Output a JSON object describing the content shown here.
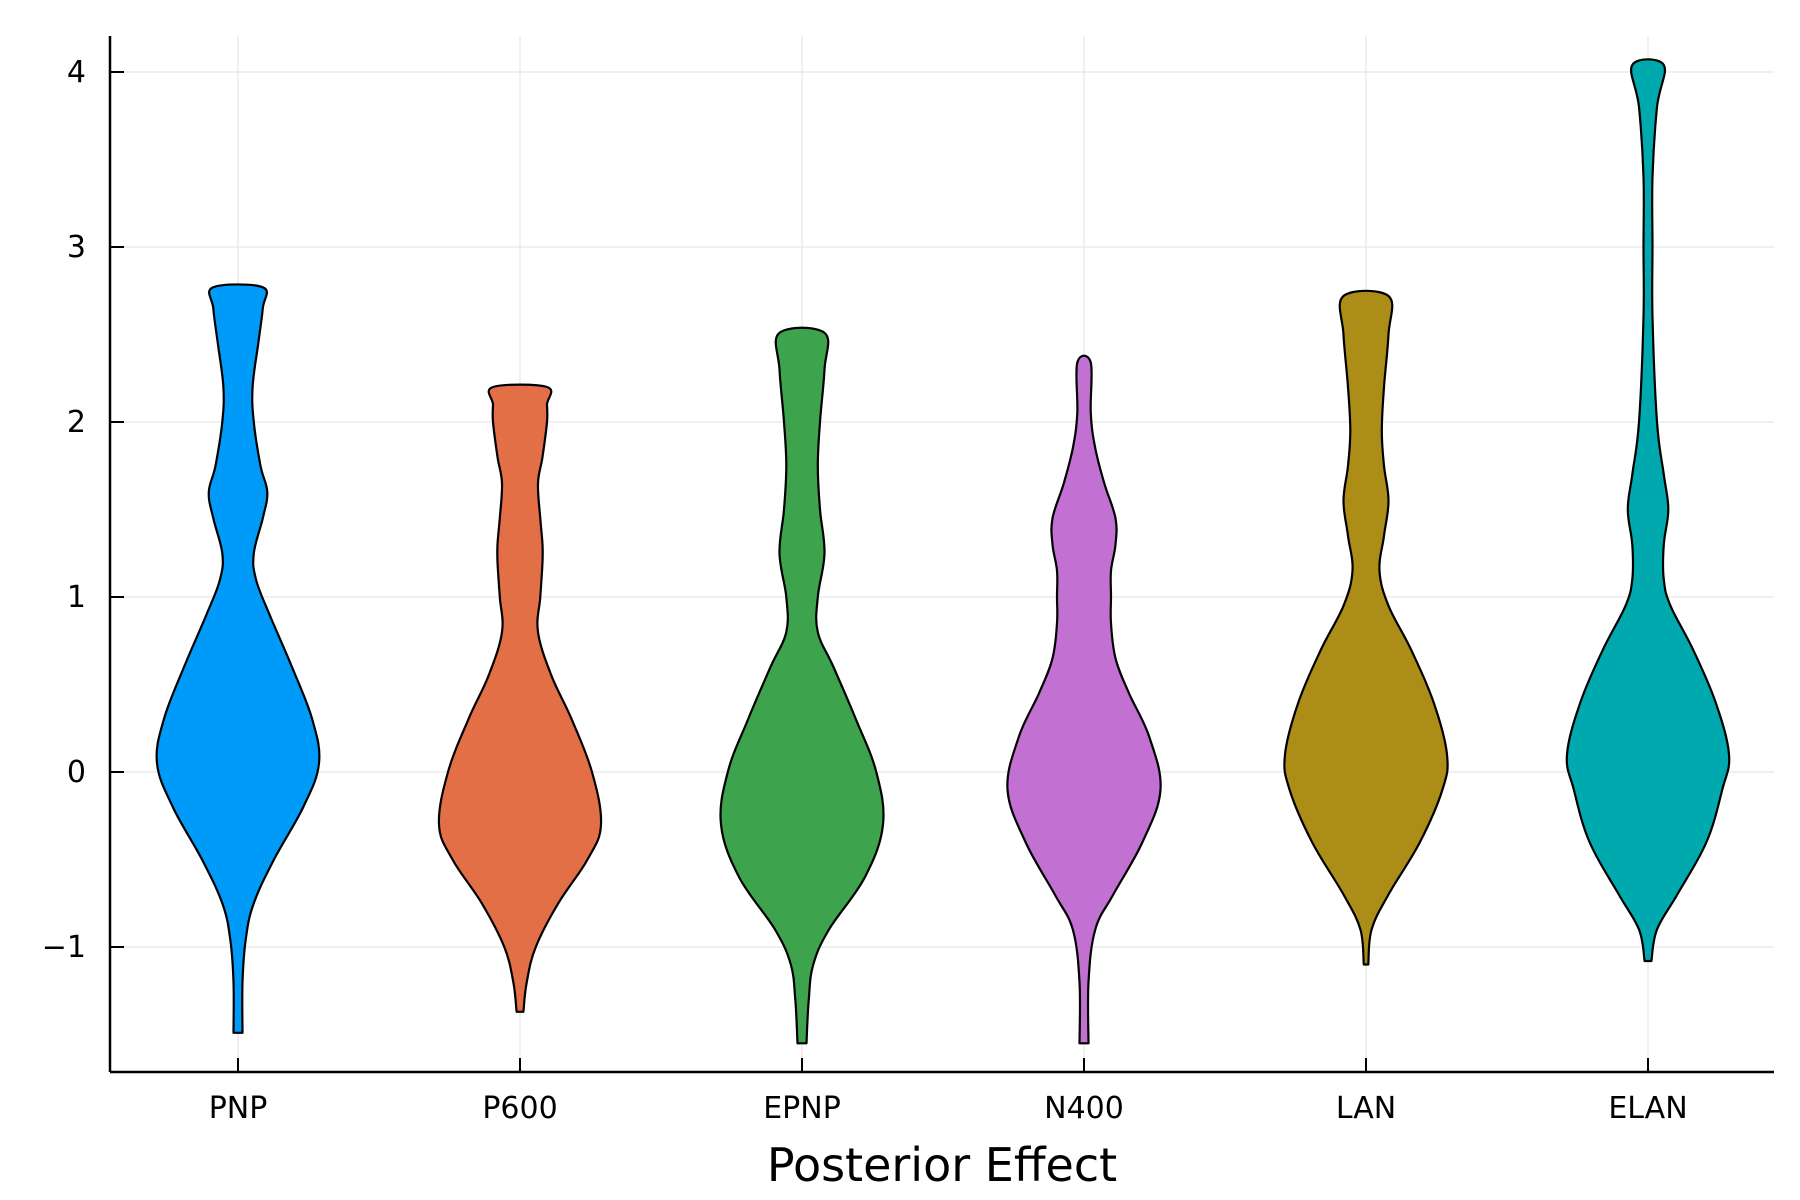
{
  "chart_data": {
    "type": "violin",
    "title": "",
    "xlabel": "Posterior Effect",
    "ylabel": "",
    "ylim": [
      -1.7,
      4.2
    ],
    "yticks": [
      -1,
      0,
      1,
      2,
      3,
      4
    ],
    "ytick_labels": [
      "−1",
      "0",
      "1",
      "2",
      "3",
      "4"
    ],
    "grid": true,
    "legend": "none",
    "categories": [
      "PNP",
      "P600",
      "EPNP",
      "N400",
      "LAN",
      "ELAN"
    ],
    "series": [
      {
        "category": "PNP",
        "color": "#009af9",
        "min": -1.49,
        "max": 2.77,
        "profile": [
          [
            -1.49,
            0.02
          ],
          [
            -1.2,
            0.02
          ],
          [
            -0.95,
            0.035
          ],
          [
            -0.75,
            0.07
          ],
          [
            -0.5,
            0.16
          ],
          [
            -0.2,
            0.29
          ],
          [
            0.05,
            0.36
          ],
          [
            0.3,
            0.33
          ],
          [
            0.6,
            0.24
          ],
          [
            0.9,
            0.14
          ],
          [
            1.1,
            0.08
          ],
          [
            1.25,
            0.07
          ],
          [
            1.45,
            0.11
          ],
          [
            1.6,
            0.13
          ],
          [
            1.75,
            0.1
          ],
          [
            2.0,
            0.07
          ],
          [
            2.2,
            0.065
          ],
          [
            2.45,
            0.09
          ],
          [
            2.65,
            0.11
          ],
          [
            2.77,
            0.11
          ]
        ]
      },
      {
        "category": "P600",
        "color": "#e26f46",
        "min": -1.37,
        "max": 2.2,
        "profile": [
          [
            -1.37,
            0.015
          ],
          [
            -1.2,
            0.03
          ],
          [
            -1.0,
            0.07
          ],
          [
            -0.75,
            0.17
          ],
          [
            -0.5,
            0.3
          ],
          [
            -0.3,
            0.36
          ],
          [
            0.0,
            0.32
          ],
          [
            0.3,
            0.23
          ],
          [
            0.55,
            0.14
          ],
          [
            0.8,
            0.08
          ],
          [
            1.0,
            0.09
          ],
          [
            1.2,
            0.1
          ],
          [
            1.3,
            0.1
          ],
          [
            1.45,
            0.09
          ],
          [
            1.65,
            0.08
          ],
          [
            1.8,
            0.1
          ],
          [
            2.0,
            0.12
          ],
          [
            2.1,
            0.12
          ],
          [
            2.2,
            0.12
          ]
        ]
      },
      {
        "category": "EPNP",
        "color": "#3da44d",
        "min": -1.55,
        "max": 2.51,
        "profile": [
          [
            -1.55,
            0.02
          ],
          [
            -1.3,
            0.03
          ],
          [
            -1.1,
            0.05
          ],
          [
            -0.9,
            0.12
          ],
          [
            -0.6,
            0.28
          ],
          [
            -0.3,
            0.36
          ],
          [
            0.0,
            0.33
          ],
          [
            0.3,
            0.24
          ],
          [
            0.6,
            0.14
          ],
          [
            0.8,
            0.07
          ],
          [
            1.0,
            0.07
          ],
          [
            1.25,
            0.1
          ],
          [
            1.5,
            0.08
          ],
          [
            1.75,
            0.07
          ],
          [
            2.0,
            0.08
          ],
          [
            2.3,
            0.1
          ],
          [
            2.51,
            0.1
          ]
        ]
      },
      {
        "category": "N400",
        "color": "#c271d2",
        "min": -1.55,
        "max": 2.34,
        "profile": [
          [
            -1.55,
            0.02
          ],
          [
            -1.2,
            0.02
          ],
          [
            -0.9,
            0.05
          ],
          [
            -0.7,
            0.13
          ],
          [
            -0.4,
            0.26
          ],
          [
            -0.1,
            0.34
          ],
          [
            0.2,
            0.29
          ],
          [
            0.45,
            0.2
          ],
          [
            0.65,
            0.14
          ],
          [
            0.85,
            0.12
          ],
          [
            1.0,
            0.12
          ],
          [
            1.15,
            0.12
          ],
          [
            1.3,
            0.14
          ],
          [
            1.45,
            0.14
          ],
          [
            1.65,
            0.09
          ],
          [
            1.85,
            0.05
          ],
          [
            2.05,
            0.03
          ],
          [
            2.34,
            0.03
          ]
        ]
      },
      {
        "category": "LAN",
        "color": "#ac8d18",
        "min": -1.1,
        "max": 2.72,
        "profile": [
          [
            -1.1,
            0.01
          ],
          [
            -0.9,
            0.025
          ],
          [
            -0.7,
            0.1
          ],
          [
            -0.4,
            0.24
          ],
          [
            -0.1,
            0.34
          ],
          [
            0.1,
            0.36
          ],
          [
            0.4,
            0.3
          ],
          [
            0.7,
            0.2
          ],
          [
            0.95,
            0.1
          ],
          [
            1.15,
            0.06
          ],
          [
            1.35,
            0.08
          ],
          [
            1.55,
            0.1
          ],
          [
            1.75,
            0.08
          ],
          [
            1.95,
            0.07
          ],
          [
            2.2,
            0.08
          ],
          [
            2.5,
            0.1
          ],
          [
            2.72,
            0.1
          ]
        ]
      },
      {
        "category": "ELAN",
        "color": "#00a9ad",
        "min": -1.08,
        "max": 4.04,
        "profile": [
          [
            -1.08,
            0.015
          ],
          [
            -0.9,
            0.04
          ],
          [
            -0.7,
            0.13
          ],
          [
            -0.4,
            0.26
          ],
          [
            -0.1,
            0.33
          ],
          [
            0.1,
            0.36
          ],
          [
            0.4,
            0.3
          ],
          [
            0.7,
            0.2
          ],
          [
            0.95,
            0.1
          ],
          [
            1.1,
            0.07
          ],
          [
            1.3,
            0.07
          ],
          [
            1.5,
            0.09
          ],
          [
            1.7,
            0.07
          ],
          [
            2.0,
            0.04
          ],
          [
            2.6,
            0.02
          ],
          [
            3.0,
            0.02
          ],
          [
            3.4,
            0.02
          ],
          [
            3.8,
            0.04
          ],
          [
            4.04,
            0.07
          ]
        ]
      }
    ]
  }
}
